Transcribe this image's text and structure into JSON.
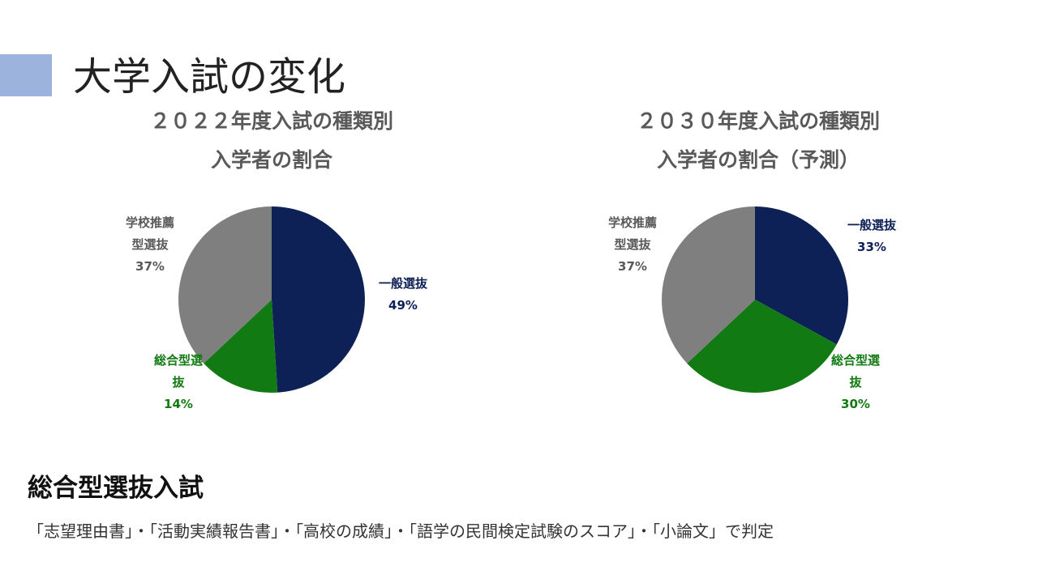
{
  "slide": {
    "title": "大学入試の変化",
    "accent_color": "#9bb3dd"
  },
  "chart_data": [
    {
      "type": "pie",
      "title_lines": [
        "２０２２年度入試の種類別",
        "入学者の割合"
      ],
      "slices": [
        {
          "label_lines": [
            "一般選抜"
          ],
          "percent_label": "49%",
          "value": 49,
          "color": "#0d2157"
        },
        {
          "label_lines": [
            "総合型選",
            "抜"
          ],
          "percent_label": "14%",
          "value": 14,
          "color": "#127a12"
        },
        {
          "label_lines": [
            "学校推薦",
            "型選抜"
          ],
          "percent_label": "37%",
          "value": 37,
          "color": "#7f7f7f"
        }
      ]
    },
    {
      "type": "pie",
      "title_lines": [
        "２０３０年度入試の種類別",
        "入学者の割合（予測）"
      ],
      "slices": [
        {
          "label_lines": [
            "一般選抜"
          ],
          "percent_label": "33%",
          "value": 33,
          "color": "#0d2157"
        },
        {
          "label_lines": [
            "総合型選",
            "抜"
          ],
          "percent_label": "30%",
          "value": 30,
          "color": "#127a12"
        },
        {
          "label_lines": [
            "学校推薦",
            "型選抜"
          ],
          "percent_label": "37%",
          "value": 37,
          "color": "#7f7f7f"
        }
      ]
    }
  ],
  "section": {
    "heading": "総合型選抜入試",
    "criteria": "「志望理由書」・「活動実績報告書」・「高校の成績」・「語学の民間検定試験のスコア」・「小論文」で判定"
  }
}
